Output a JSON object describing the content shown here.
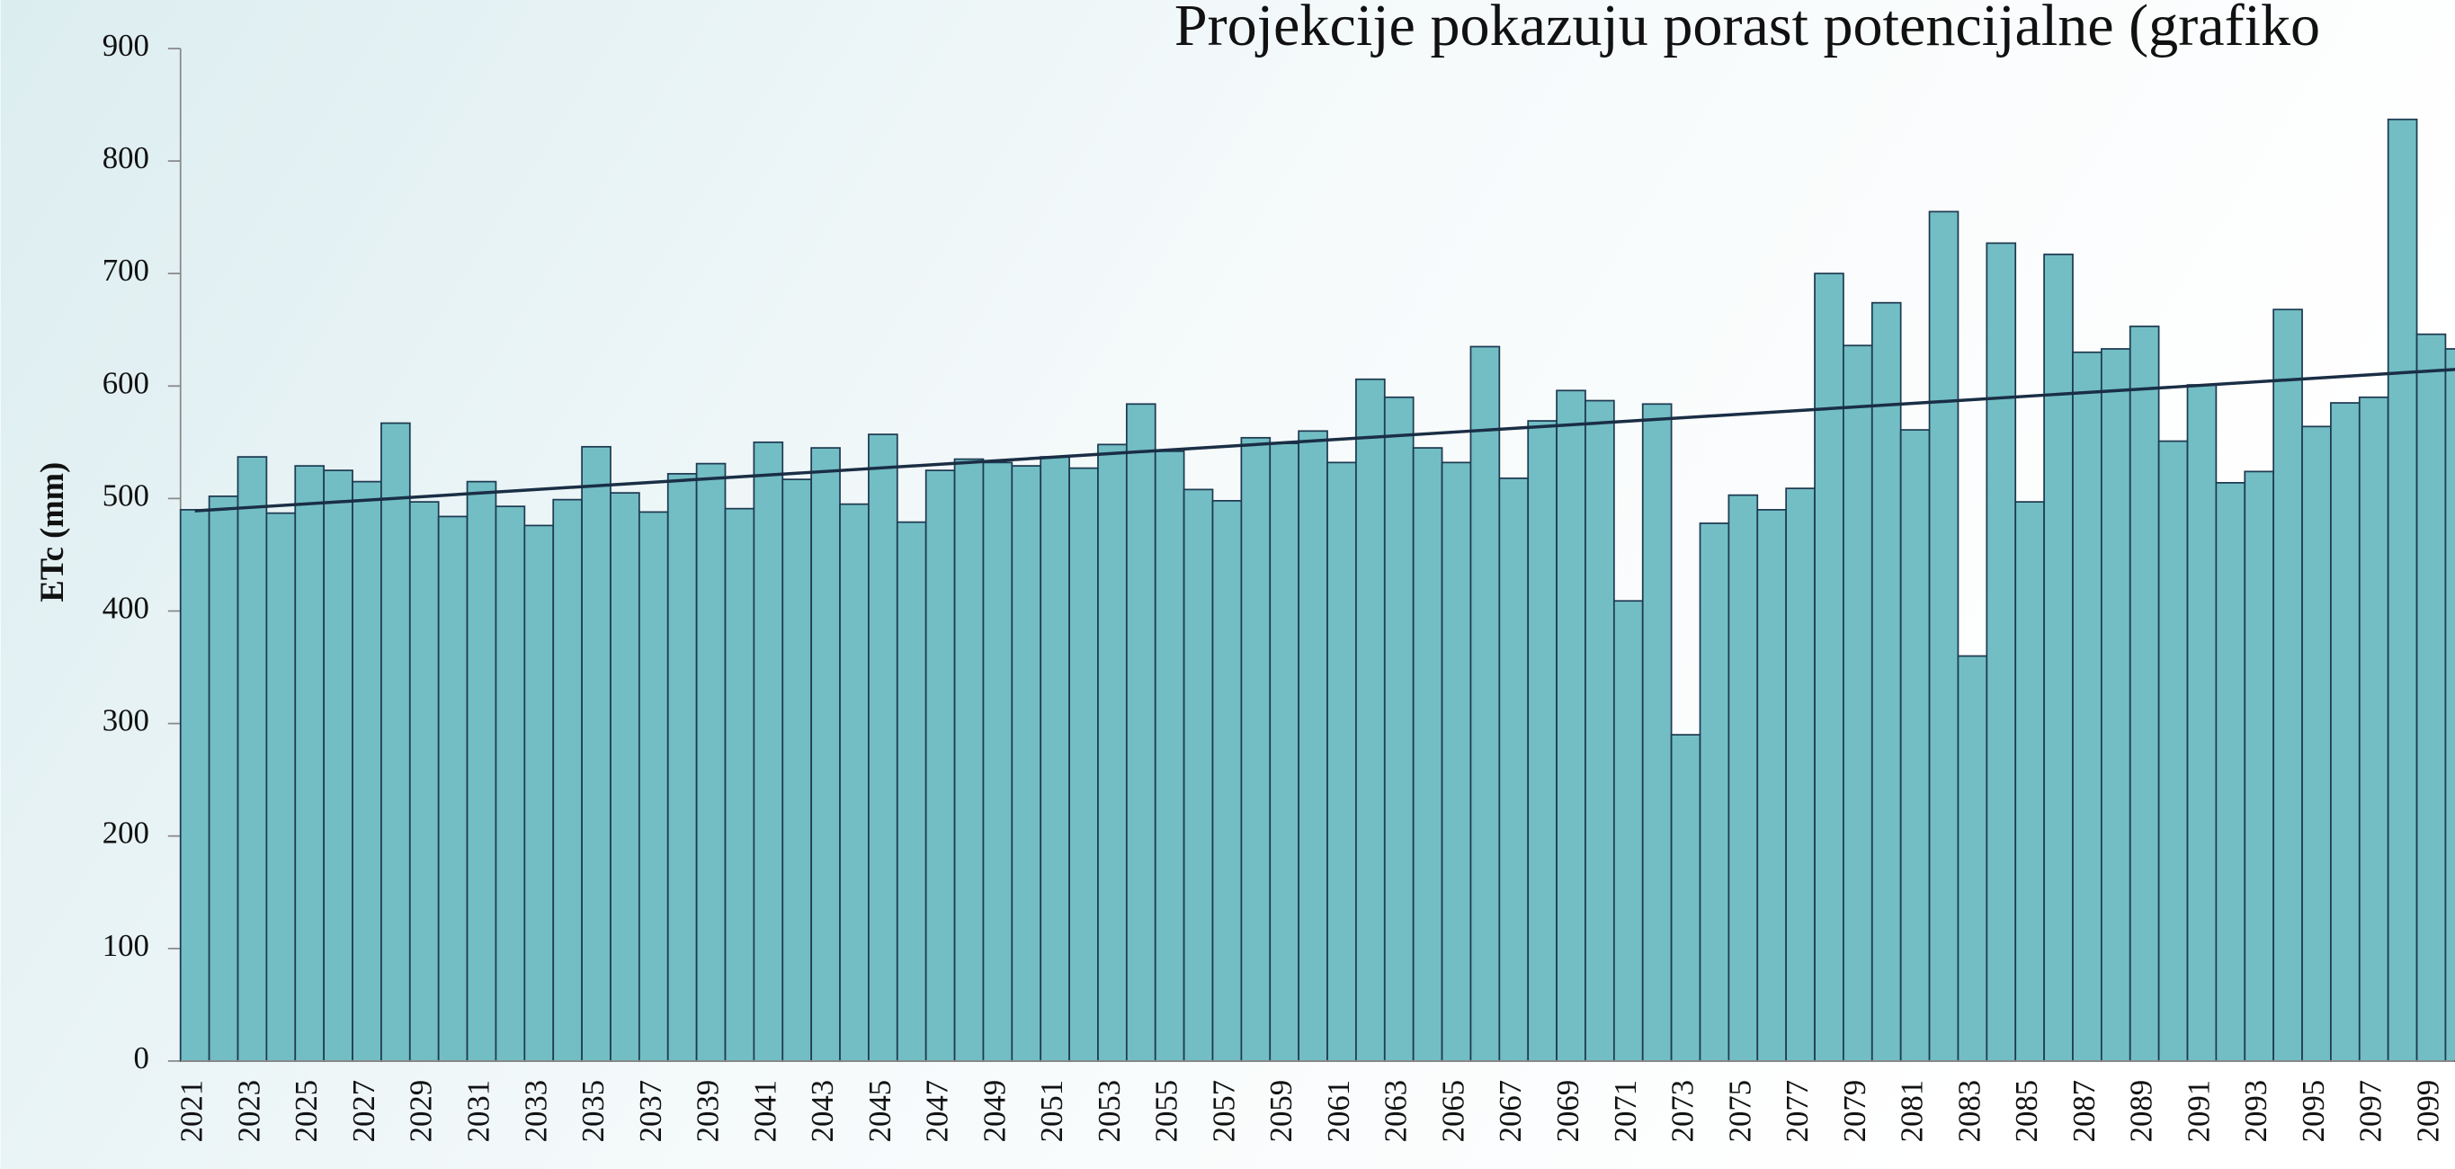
{
  "chart_data": {
    "type": "bar",
    "title": "Projekcije pokazuju porast potencijalne (grafiko",
    "y_label": "ETc (mm)",
    "color": "#72bec4",
    "edge_color": "#1f3b52",
    "trend_color": "#1a2e45",
    "categories": [
      "2021",
      null,
      "2023",
      null,
      "2025",
      null,
      "2027",
      null,
      "2029",
      null,
      "2031",
      null,
      "2033",
      null,
      "2035",
      null,
      "2037",
      null,
      "2039",
      null,
      "2041",
      null,
      "2043",
      null,
      "2045",
      null,
      "2047",
      null,
      "2049",
      null,
      "2051",
      null,
      "2053",
      null,
      "2055",
      null,
      "2057",
      null,
      "2059",
      null,
      "2061",
      null,
      "2063",
      null,
      "2065",
      null,
      "2067",
      null,
      "2069",
      null,
      "2071",
      null,
      "2073",
      null,
      "2075",
      null,
      "2077",
      null,
      "2079",
      null,
      "2081",
      null,
      "2083",
      null,
      "2085",
      null,
      "2087",
      null,
      "2089",
      null,
      "2091",
      null,
      "2093",
      null,
      "2095",
      null,
      "2097",
      null,
      "2099",
      null
    ],
    "values": [
      490,
      502,
      537,
      487,
      529,
      525,
      515,
      567,
      497,
      484,
      515,
      493,
      476,
      499,
      546,
      505,
      488,
      522,
      531,
      491,
      550,
      517,
      545,
      495,
      557,
      479,
      525,
      535,
      532,
      529,
      537,
      527,
      548,
      584,
      542,
      508,
      498,
      554,
      549,
      560,
      532,
      606,
      590,
      545,
      532,
      635,
      518,
      569,
      596,
      587,
      409,
      584,
      290,
      478,
      503,
      490,
      509,
      700,
      636,
      674,
      561,
      755,
      360,
      727,
      497,
      717,
      630,
      633,
      653,
      551,
      601,
      514,
      524,
      668,
      564,
      585,
      590,
      837,
      646,
      633
    ],
    "trendline": [
      489,
      615
    ],
    "ylim": [
      0,
      900
    ],
    "yticks": [
      0,
      100,
      200,
      300,
      400,
      500,
      600,
      700,
      800,
      900
    ]
  }
}
